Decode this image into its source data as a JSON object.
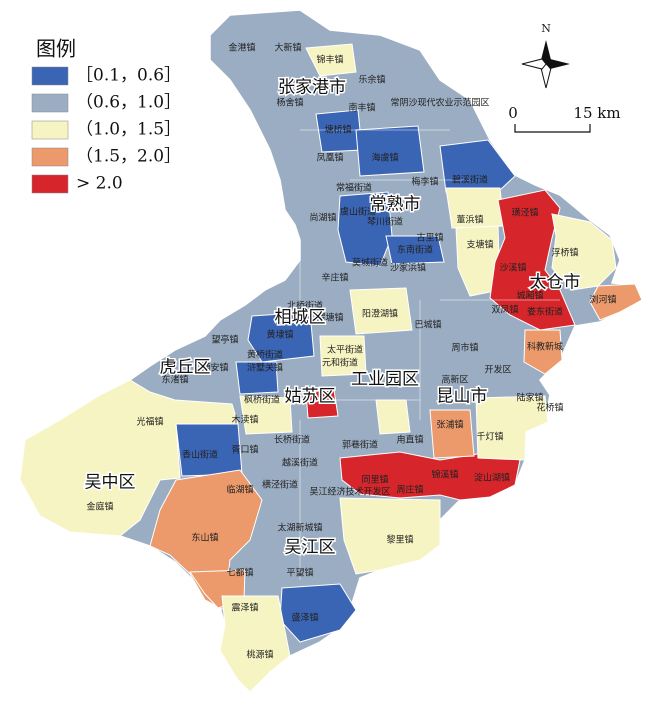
{
  "legend": {
    "title": "图例",
    "items": [
      {
        "label": "［0.1，0.6］",
        "color": "#3a64b4"
      },
      {
        "label": "（0.6，1.0］",
        "color": "#9badc2"
      },
      {
        "label": "（1.0，1.5］",
        "color": "#f7f4c3"
      },
      {
        "label": "（1.5，2.0］",
        "color": "#ec9a6c"
      },
      {
        "label": "> 2.0",
        "color": "#d6262b"
      }
    ]
  },
  "north": "N",
  "scale": {
    "zero": "0",
    "length": "15 km"
  },
  "districts": [
    "张家港市",
    "常熟市",
    "太仓市",
    "相城区",
    "虎丘区",
    "工业园区",
    "昆山市",
    "姑苏区",
    "吴中区",
    "吴江区"
  ],
  "towns": [
    "金港镇",
    "大新镇",
    "锦丰镇",
    "乐余镇",
    "杨舍镇",
    "南丰镇",
    "常阴沙现代农业示范园区",
    "塘桥镇",
    "凤凰镇",
    "海虞镇",
    "梅李镇",
    "碧溪街道",
    "常福街道",
    "尚湖镇",
    "虞山街道",
    "琴川街道",
    "董浜镇",
    "古里镇",
    "东南街道",
    "莫城街道",
    "沙家浜镇",
    "辛庄镇",
    "支塘镇",
    "璜泾镇",
    "浮桥镇",
    "沙溪镇",
    "城厢镇",
    "双凤镇",
    "娄东街道",
    "浏河镇",
    "科教新城",
    "北桥街道",
    "阳澄湖镇",
    "望亭镇",
    "黄埭镇",
    "渭塘镇",
    "太平街道",
    "巴城镇",
    "周市镇",
    "黄桥街道",
    "元和街道",
    "东渚镇",
    "通安镇",
    "浒墅关镇",
    "开发区",
    "高新区",
    "陆家镇",
    "花桥镇",
    "光福镇",
    "枫桥街道",
    "木渎镇",
    "胥口镇",
    "香山街道",
    "长桥街道",
    "郭巷街道",
    "甪直镇",
    "张浦镇",
    "千灯镇",
    "越溪街道",
    "横泾街道",
    "吴江经济技术开发区",
    "同里镇",
    "周庄镇",
    "锦溪镇",
    "淀山湖镇",
    "临湖镇",
    "太湖新城镇",
    "金庭镇",
    "东山镇",
    "黎里镇",
    "平望镇",
    "七都镇",
    "震泽镇",
    "盛泽镇",
    "桃源镇"
  ]
}
